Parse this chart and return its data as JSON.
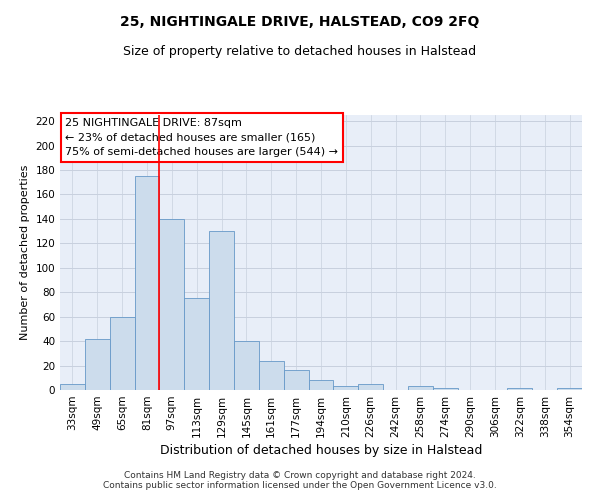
{
  "title": "25, NIGHTINGALE DRIVE, HALSTEAD, CO9 2FQ",
  "subtitle": "Size of property relative to detached houses in Halstead",
  "xlabel": "Distribution of detached houses by size in Halstead",
  "ylabel": "Number of detached properties",
  "categories": [
    "33sqm",
    "49sqm",
    "65sqm",
    "81sqm",
    "97sqm",
    "113sqm",
    "129sqm",
    "145sqm",
    "161sqm",
    "177sqm",
    "194sqm",
    "210sqm",
    "226sqm",
    "242sqm",
    "258sqm",
    "274sqm",
    "290sqm",
    "306sqm",
    "322sqm",
    "338sqm",
    "354sqm"
  ],
  "values": [
    5,
    42,
    60,
    175,
    140,
    75,
    130,
    40,
    24,
    16,
    8,
    3,
    5,
    0,
    3,
    2,
    0,
    0,
    2,
    0,
    2
  ],
  "bar_color": "#ccdcec",
  "bar_edge_color": "#6698c8",
  "grid_color": "#c8d0de",
  "background_color": "#e8eef8",
  "red_line_x": 3.5,
  "annotation_text": "25 NIGHTINGALE DRIVE: 87sqm\n← 23% of detached houses are smaller (165)\n75% of semi-detached houses are larger (544) →",
  "annotation_box_color": "white",
  "annotation_box_edge": "red",
  "ylim": [
    0,
    225
  ],
  "yticks": [
    0,
    20,
    40,
    60,
    80,
    100,
    120,
    140,
    160,
    180,
    200,
    220
  ],
  "footer": "Contains HM Land Registry data © Crown copyright and database right 2024.\nContains public sector information licensed under the Open Government Licence v3.0.",
  "title_fontsize": 10,
  "subtitle_fontsize": 9,
  "xlabel_fontsize": 9,
  "ylabel_fontsize": 8,
  "tick_fontsize": 7.5,
  "annotation_fontsize": 8,
  "footer_fontsize": 6.5
}
